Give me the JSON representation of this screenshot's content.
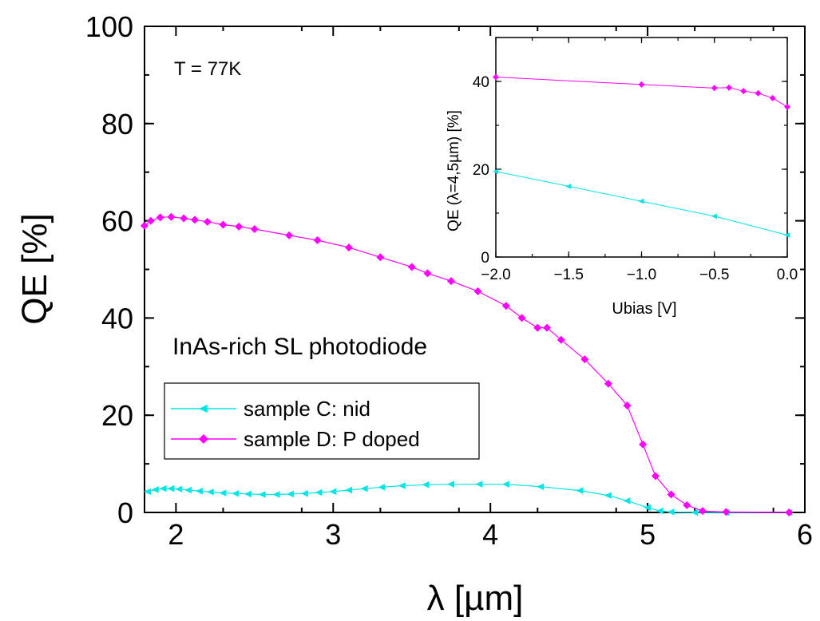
{
  "chart_data": [
    {
      "type": "line",
      "xlabel": "λ [µm]",
      "ylabel": "QE [%]",
      "xlim": [
        1.8,
        6.0
      ],
      "ylim": [
        0,
        100
      ],
      "x_ticks": [
        "2",
        "3",
        "4",
        "5",
        "6"
      ],
      "y_ticks": [
        "0",
        "20",
        "40",
        "60",
        "80",
        "100"
      ],
      "grid": false,
      "legend_position": "bottom-left",
      "annotations": [
        "T = 77K",
        "InAs-rich SL photodiode"
      ],
      "series": [
        {
          "name": "sample C: nid",
          "color": "#00e5e5",
          "marker": "left-triangle",
          "points": [
            [
              1.82,
              4.3
            ],
            [
              1.87,
              4.7
            ],
            [
              1.92,
              4.9
            ],
            [
              1.97,
              4.9
            ],
            [
              2.02,
              4.8
            ],
            [
              2.08,
              4.6
            ],
            [
              2.15,
              4.4
            ],
            [
              2.22,
              4.2
            ],
            [
              2.3,
              4.0
            ],
            [
              2.38,
              3.9
            ],
            [
              2.46,
              3.8
            ],
            [
              2.55,
              3.7
            ],
            [
              2.64,
              3.7
            ],
            [
              2.73,
              3.8
            ],
            [
              2.82,
              3.9
            ],
            [
              2.91,
              4.1
            ],
            [
              3.0,
              4.3
            ],
            [
              3.1,
              4.6
            ],
            [
              3.2,
              4.9
            ],
            [
              3.31,
              5.2
            ],
            [
              3.44,
              5.5
            ],
            [
              3.59,
              5.7
            ],
            [
              3.75,
              5.8
            ],
            [
              3.93,
              5.8
            ],
            [
              4.1,
              5.8
            ],
            [
              4.32,
              5.3
            ],
            [
              4.57,
              4.5
            ],
            [
              4.75,
              3.5
            ],
            [
              4.87,
              2.4
            ],
            [
              5.0,
              1.0
            ],
            [
              5.08,
              0.3
            ],
            [
              5.15,
              0.1
            ],
            [
              5.3,
              0.0
            ],
            [
              5.5,
              0.0
            ],
            [
              5.9,
              0.0
            ]
          ]
        },
        {
          "name": "sample D: P doped",
          "color": "#ff00ff",
          "marker": "diamond",
          "points": [
            [
              1.8,
              59.0
            ],
            [
              1.84,
              60.0
            ],
            [
              1.9,
              60.7
            ],
            [
              1.97,
              60.8
            ],
            [
              2.05,
              60.5
            ],
            [
              2.12,
              60.2
            ],
            [
              2.2,
              59.8
            ],
            [
              2.3,
              59.2
            ],
            [
              2.4,
              58.8
            ],
            [
              2.5,
              58.3
            ],
            [
              2.72,
              57.0
            ],
            [
              2.9,
              56.0
            ],
            [
              3.1,
              54.5
            ],
            [
              3.3,
              52.5
            ],
            [
              3.5,
              50.5
            ],
            [
              3.6,
              49.2
            ],
            [
              3.75,
              47.6
            ],
            [
              3.92,
              45.5
            ],
            [
              4.1,
              42.5
            ],
            [
              4.2,
              40.0
            ],
            [
              4.3,
              38.0
            ],
            [
              4.36,
              38.0
            ],
            [
              4.45,
              35.5
            ],
            [
              4.6,
              31.5
            ],
            [
              4.75,
              26.5
            ],
            [
              4.87,
              22.0
            ],
            [
              4.97,
              14.0
            ],
            [
              5.05,
              7.5
            ],
            [
              5.15,
              3.7
            ],
            [
              5.25,
              1.5
            ],
            [
              5.35,
              0.3
            ],
            [
              5.5,
              0.1
            ],
            [
              5.9,
              0.0
            ]
          ]
        }
      ]
    },
    {
      "type": "line",
      "xlabel": "Ubias [V]",
      "ylabel": "QE (λ=4,5µm) [%]",
      "xlim": [
        -2.0,
        0.0
      ],
      "ylim": [
        0,
        50
      ],
      "x_ticks": [
        "-2.0",
        "-1.5",
        "-1.0",
        "-0.5",
        "0.0"
      ],
      "y_ticks": [
        "0",
        "20",
        "40"
      ],
      "grid": false,
      "series": [
        {
          "color": "#00e5e5",
          "marker": "left-triangle",
          "points": [
            [
              -2.0,
              19.5
            ],
            [
              -1.5,
              16.1
            ],
            [
              -1.0,
              12.7
            ],
            [
              -0.5,
              9.3
            ],
            [
              0.0,
              5.0
            ]
          ]
        },
        {
          "color": "#ff00ff",
          "marker": "diamond",
          "points": [
            [
              -2.0,
              41.0
            ],
            [
              -1.0,
              39.3
            ],
            [
              -0.5,
              38.5
            ],
            [
              -0.4,
              38.6
            ],
            [
              -0.3,
              37.8
            ],
            [
              -0.2,
              37.3
            ],
            [
              -0.1,
              36.2
            ],
            [
              0.0,
              34.2
            ]
          ]
        }
      ]
    }
  ]
}
